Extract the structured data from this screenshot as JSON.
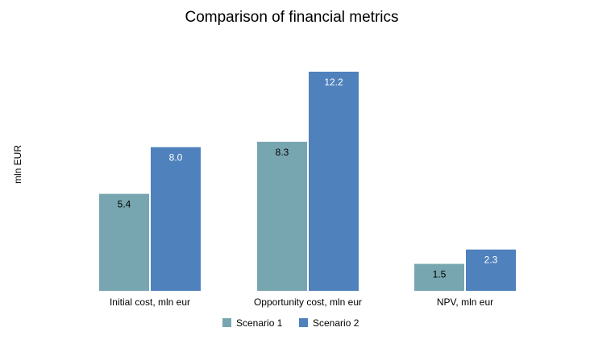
{
  "chart_data": {
    "type": "bar",
    "title": "Comparison of financial metrics",
    "xlabel": "",
    "ylabel": "mln EUR",
    "categories": [
      "Initial cost, mln eur",
      "Opportunity cost, mln eur",
      "NPV, mln eur"
    ],
    "series": [
      {
        "name": "Scenario 1",
        "color": "#78a6b0",
        "label_color": "#000000",
        "values": [
          5.4,
          8.3,
          1.5
        ]
      },
      {
        "name": "Scenario 2",
        "color": "#4f81bd",
        "label_color": "#ffffff",
        "values": [
          8.0,
          12.2,
          2.3
        ]
      }
    ],
    "ylim": [
      0,
      12.2
    ],
    "grid": false,
    "legend_position": "bottom"
  }
}
